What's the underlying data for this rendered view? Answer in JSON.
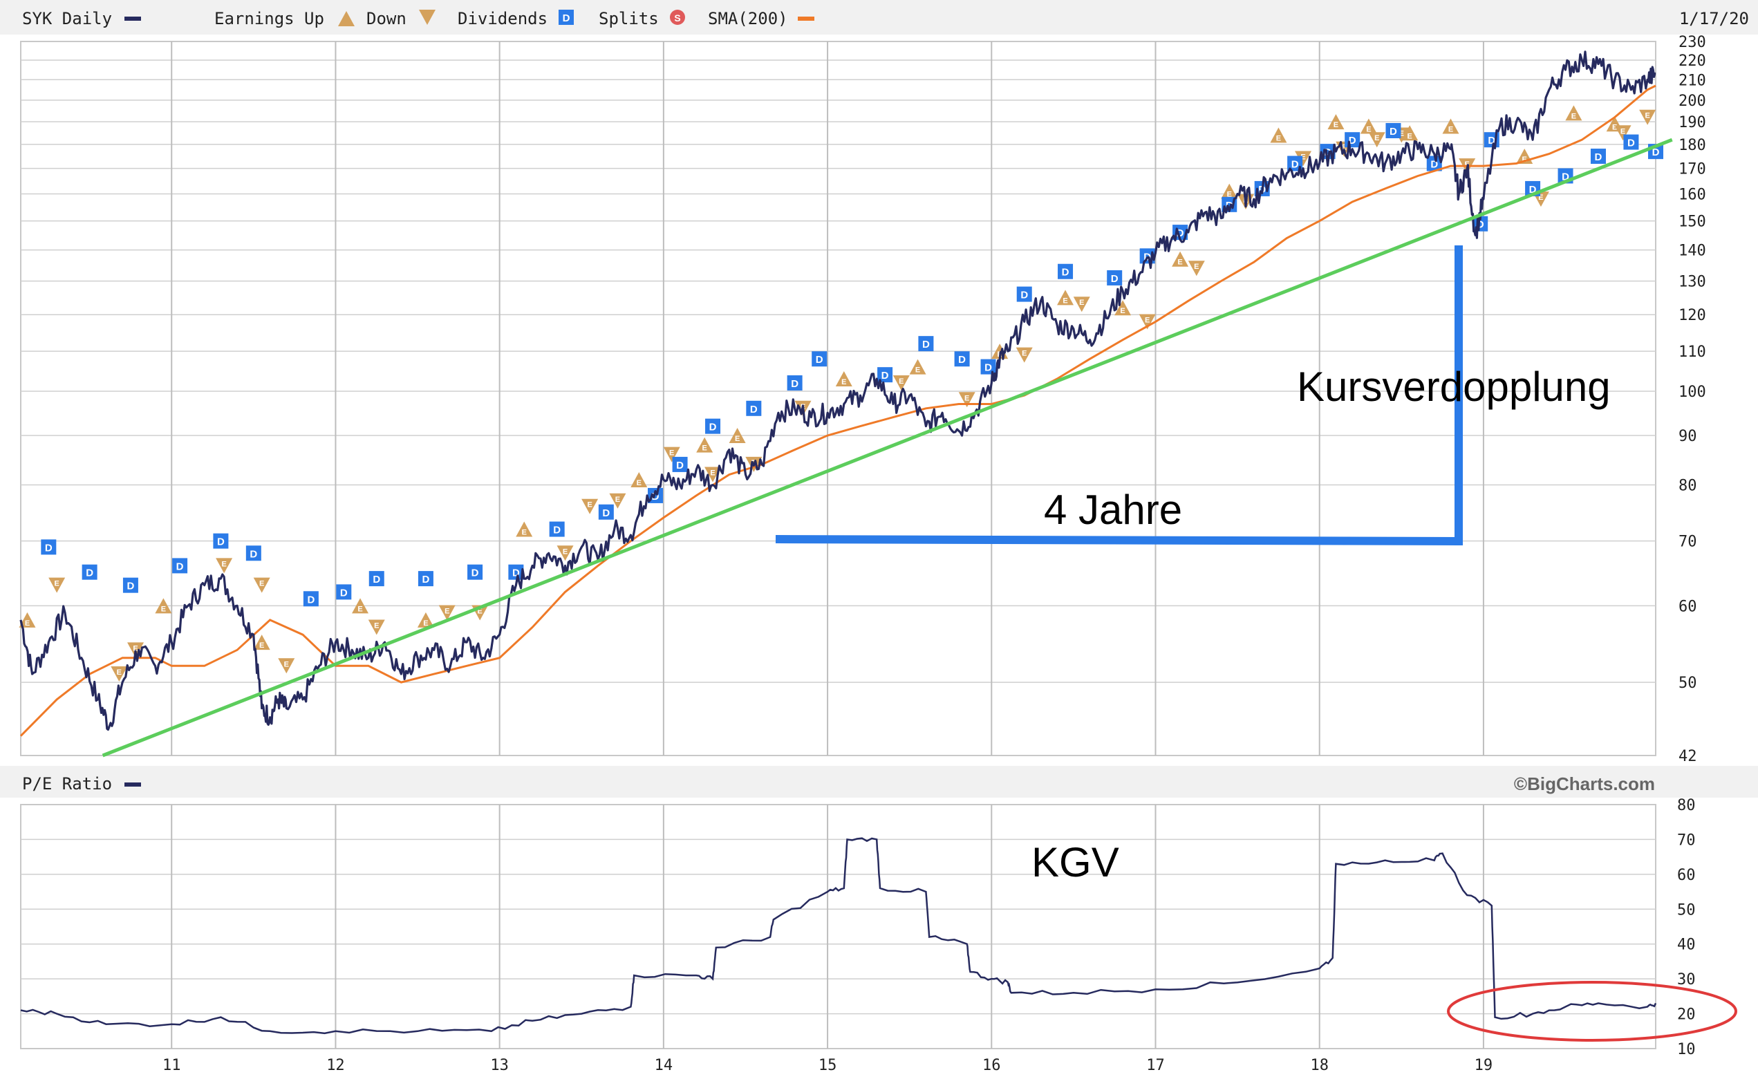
{
  "header": {
    "symbol_label": "SYK Daily",
    "earnings_up_label": "Earnings Up",
    "earnings_down_label": "Down",
    "dividends_label": "Dividends",
    "splits_label": "Splits",
    "sma_label": "SMA(200)",
    "date_label": "1/17/20"
  },
  "lower_header": {
    "pe_label": "P/E Ratio",
    "credit": "©BigCharts.com"
  },
  "colors": {
    "price": "#262a5e",
    "sma": "#ef7a28",
    "trend": "#5ccd5c",
    "annotation": "#2b7be8",
    "earnings": "#d4a15c",
    "dividend": "#2b7be8",
    "split": "#e05a5a",
    "circle": "#e03a3a",
    "grid": "#cfcfcf"
  },
  "annotations": {
    "doubling": "Kursverdopplung",
    "years": "4 Jahre",
    "pe_title": "KGV"
  },
  "chart_data": [
    {
      "type": "line",
      "scale": "log",
      "xlim": [
        2010.08,
        2020.05
      ],
      "ylim": [
        42,
        230
      ],
      "x_ticks": [
        11,
        12,
        13,
        14,
        15,
        16,
        17,
        18,
        19
      ],
      "y_ticks": [
        42,
        50,
        60,
        70,
        80,
        90,
        100,
        110,
        120,
        130,
        140,
        150,
        160,
        170,
        180,
        190,
        200,
        210,
        220,
        230
      ],
      "series": [
        {
          "name": "SYK Daily",
          "x": [
            2010.08,
            2010.15,
            2010.25,
            2010.35,
            2010.45,
            2010.55,
            2010.62,
            2010.7,
            2010.8,
            2010.9,
            2011.0,
            2011.1,
            2011.2,
            2011.3,
            2011.4,
            2011.5,
            2011.55,
            2011.6,
            2011.65,
            2011.7,
            2011.8,
            2011.9,
            2012.0,
            2012.1,
            2012.2,
            2012.3,
            2012.4,
            2012.5,
            2012.6,
            2012.7,
            2012.8,
            2012.9,
            2013.0,
            2013.1,
            2013.2,
            2013.3,
            2013.4,
            2013.5,
            2013.6,
            2013.7,
            2013.8,
            2013.9,
            2014.0,
            2014.1,
            2014.2,
            2014.3,
            2014.4,
            2014.5,
            2014.6,
            2014.7,
            2014.8,
            2014.9,
            2015.0,
            2015.1,
            2015.2,
            2015.3,
            2015.4,
            2015.5,
            2015.6,
            2015.7,
            2015.8,
            2015.9,
            2016.0,
            2016.05,
            2016.1,
            2016.2,
            2016.3,
            2016.4,
            2016.5,
            2016.6,
            2016.7,
            2016.8,
            2016.9,
            2017.0,
            2017.1,
            2017.2,
            2017.3,
            2017.4,
            2017.5,
            2017.6,
            2017.7,
            2017.8,
            2017.9,
            2018.0,
            2018.1,
            2018.2,
            2018.3,
            2018.4,
            2018.5,
            2018.6,
            2018.7,
            2018.8,
            2018.85,
            2018.9,
            2018.95,
            2019.0,
            2019.1,
            2019.2,
            2019.3,
            2019.4,
            2019.5,
            2019.6,
            2019.7,
            2019.8,
            2019.9,
            2020.0,
            2020.05
          ],
          "y": [
            58,
            51,
            55,
            59,
            53,
            48,
            45,
            50,
            54,
            52,
            55,
            60,
            63,
            64,
            60,
            56,
            47,
            46,
            48,
            47,
            48,
            52,
            55,
            54,
            53,
            55,
            51,
            53,
            54,
            52,
            55,
            53,
            56,
            63,
            66,
            68,
            66,
            69,
            67,
            72,
            71,
            78,
            81,
            80,
            83,
            80,
            87,
            82,
            84,
            95,
            96,
            94,
            95,
            97,
            99,
            103,
            97,
            99,
            92,
            95,
            91,
            95,
            102,
            108,
            110,
            118,
            124,
            117,
            116,
            113,
            119,
            127,
            132,
            139,
            144,
            146,
            153,
            151,
            160,
            158,
            166,
            168,
            170,
            172,
            177,
            178,
            176,
            172,
            176,
            178,
            176,
            178,
            160,
            170,
            145,
            158,
            188,
            190,
            182,
            205,
            215,
            220,
            218,
            210,
            205,
            210,
            213
          ]
        },
        {
          "name": "SMA(200)",
          "x": [
            2010.08,
            2010.3,
            2010.5,
            2010.7,
            2010.9,
            2011.0,
            2011.2,
            2011.4,
            2011.6,
            2011.8,
            2012.0,
            2012.2,
            2012.4,
            2012.6,
            2012.8,
            2013.0,
            2013.2,
            2013.4,
            2013.6,
            2013.8,
            2014.0,
            2014.2,
            2014.4,
            2014.6,
            2014.8,
            2015.0,
            2015.2,
            2015.4,
            2015.6,
            2015.8,
            2016.0,
            2016.2,
            2016.4,
            2016.6,
            2016.8,
            2017.0,
            2017.2,
            2017.4,
            2017.6,
            2017.8,
            2018.0,
            2018.2,
            2018.4,
            2018.6,
            2018.8,
            2019.0,
            2019.2,
            2019.4,
            2019.6,
            2019.8,
            2020.0,
            2020.05
          ],
          "y": [
            44,
            48,
            51,
            53,
            53,
            52,
            52,
            54,
            58,
            56,
            52,
            52,
            50,
            51,
            52,
            53,
            57,
            62,
            66,
            70,
            74,
            78,
            82,
            84,
            87,
            90,
            92,
            94,
            96,
            97,
            97,
            99,
            103,
            108,
            113,
            118,
            124,
            130,
            136,
            144,
            150,
            157,
            162,
            167,
            171,
            171,
            172,
            176,
            182,
            192,
            205,
            207
          ]
        }
      ],
      "trendline": {
        "x": [
          2010.58,
          2020.15
        ],
        "y": [
          42,
          182
        ]
      },
      "earnings_up": [
        [
          2010.12,
          58
        ],
        [
          2010.95,
          60
        ],
        [
          2011.55,
          55
        ],
        [
          2012.15,
          60
        ],
        [
          2012.55,
          58
        ],
        [
          2013.15,
          72
        ],
        [
          2013.85,
          81
        ],
        [
          2014.25,
          88
        ],
        [
          2014.45,
          90
        ],
        [
          2015.1,
          103
        ],
        [
          2015.55,
          106
        ],
        [
          2016.05,
          110
        ],
        [
          2016.45,
          125
        ],
        [
          2016.8,
          122
        ],
        [
          2017.15,
          137
        ],
        [
          2017.45,
          161
        ],
        [
          2017.75,
          184
        ],
        [
          2018.1,
          190
        ],
        [
          2018.3,
          188
        ],
        [
          2018.55,
          185
        ],
        [
          2018.8,
          188
        ],
        [
          2019.25,
          175
        ],
        [
          2019.55,
          194
        ],
        [
          2019.8,
          189
        ]
      ],
      "earnings_down": [
        [
          2010.3,
          63
        ],
        [
          2010.68,
          51
        ],
        [
          2010.78,
          54
        ],
        [
          2011.32,
          66
        ],
        [
          2011.55,
          63
        ],
        [
          2011.7,
          52
        ],
        [
          2012.25,
          57
        ],
        [
          2012.68,
          59
        ],
        [
          2012.88,
          59
        ],
        [
          2013.4,
          68
        ],
        [
          2013.55,
          76
        ],
        [
          2013.72,
          77
        ],
        [
          2014.05,
          86
        ],
        [
          2014.3,
          82
        ],
        [
          2014.55,
          84
        ],
        [
          2014.85,
          96
        ],
        [
          2015.45,
          102
        ],
        [
          2015.85,
          98
        ],
        [
          2016.2,
          109
        ],
        [
          2016.55,
          123
        ],
        [
          2016.95,
          118
        ],
        [
          2017.25,
          134
        ],
        [
          2017.55,
          157
        ],
        [
          2017.9,
          174
        ],
        [
          2018.15,
          178
        ],
        [
          2018.35,
          182
        ],
        [
          2018.5,
          184
        ],
        [
          2018.9,
          171
        ],
        [
          2019.35,
          158
        ],
        [
          2019.85,
          185
        ],
        [
          2020.0,
          192
        ]
      ],
      "dividends": [
        [
          2010.25,
          69
        ],
        [
          2010.5,
          65
        ],
        [
          2010.75,
          63
        ],
        [
          2011.05,
          66
        ],
        [
          2011.3,
          70
        ],
        [
          2011.5,
          68
        ],
        [
          2011.85,
          61
        ],
        [
          2012.05,
          62
        ],
        [
          2012.25,
          64
        ],
        [
          2012.55,
          64
        ],
        [
          2012.85,
          65
        ],
        [
          2013.1,
          65
        ],
        [
          2013.35,
          72
        ],
        [
          2013.65,
          75
        ],
        [
          2013.95,
          78
        ],
        [
          2014.1,
          84
        ],
        [
          2014.3,
          92
        ],
        [
          2014.55,
          96
        ],
        [
          2014.8,
          102
        ],
        [
          2014.95,
          108
        ],
        [
          2015.35,
          104
        ],
        [
          2015.6,
          112
        ],
        [
          2015.82,
          108
        ],
        [
          2015.98,
          106
        ],
        [
          2016.2,
          126
        ],
        [
          2016.45,
          133
        ],
        [
          2016.75,
          131
        ],
        [
          2016.95,
          138
        ],
        [
          2017.15,
          146
        ],
        [
          2017.45,
          156
        ],
        [
          2017.65,
          162
        ],
        [
          2017.85,
          172
        ],
        [
          2018.05,
          177
        ],
        [
          2018.2,
          182
        ],
        [
          2018.45,
          186
        ],
        [
          2018.7,
          172
        ],
        [
          2018.98,
          149
        ],
        [
          2019.05,
          182
        ],
        [
          2019.3,
          162
        ],
        [
          2019.5,
          167
        ],
        [
          2019.7,
          175
        ],
        [
          2019.9,
          181
        ],
        [
          2020.05,
          177
        ]
      ]
    },
    {
      "type": "line",
      "xlim": [
        2010.08,
        2020.05
      ],
      "ylim": [
        10,
        80
      ],
      "x_ticks": [
        11,
        12,
        13,
        14,
        15,
        16,
        17,
        18,
        19
      ],
      "y_ticks": [
        10,
        20,
        30,
        40,
        50,
        60,
        70,
        80
      ],
      "series": [
        {
          "name": "P/E Ratio",
          "x": [
            2010.08,
            2010.3,
            2010.6,
            2011.0,
            2011.3,
            2011.6,
            2012.0,
            2012.5,
            2012.95,
            2013.2,
            2013.5,
            2013.8,
            2013.82,
            2014.2,
            2014.3,
            2014.32,
            2014.65,
            2014.67,
            2015.0,
            2015.1,
            2015.12,
            2015.3,
            2015.32,
            2015.6,
            2015.62,
            2015.85,
            2015.87,
            2016.0,
            2016.1,
            2016.12,
            2016.5,
            2017.0,
            2017.5,
            2018.0,
            2018.08,
            2018.1,
            2018.4,
            2018.7,
            2018.75,
            2018.9,
            2019.05,
            2019.07,
            2019.3,
            2019.5,
            2019.7,
            2020.0,
            2020.05
          ],
          "y": [
            21,
            20,
            17,
            17,
            19,
            15,
            15,
            15,
            15,
            18,
            20,
            22,
            31,
            31,
            30,
            39,
            42,
            47,
            55,
            56,
            70,
            70,
            56,
            55,
            42,
            40,
            32,
            30,
            29,
            26,
            26,
            27,
            29,
            33,
            36,
            63,
            64,
            64,
            66,
            54,
            51,
            19,
            20,
            22,
            23,
            22,
            23
          ]
        }
      ]
    }
  ]
}
